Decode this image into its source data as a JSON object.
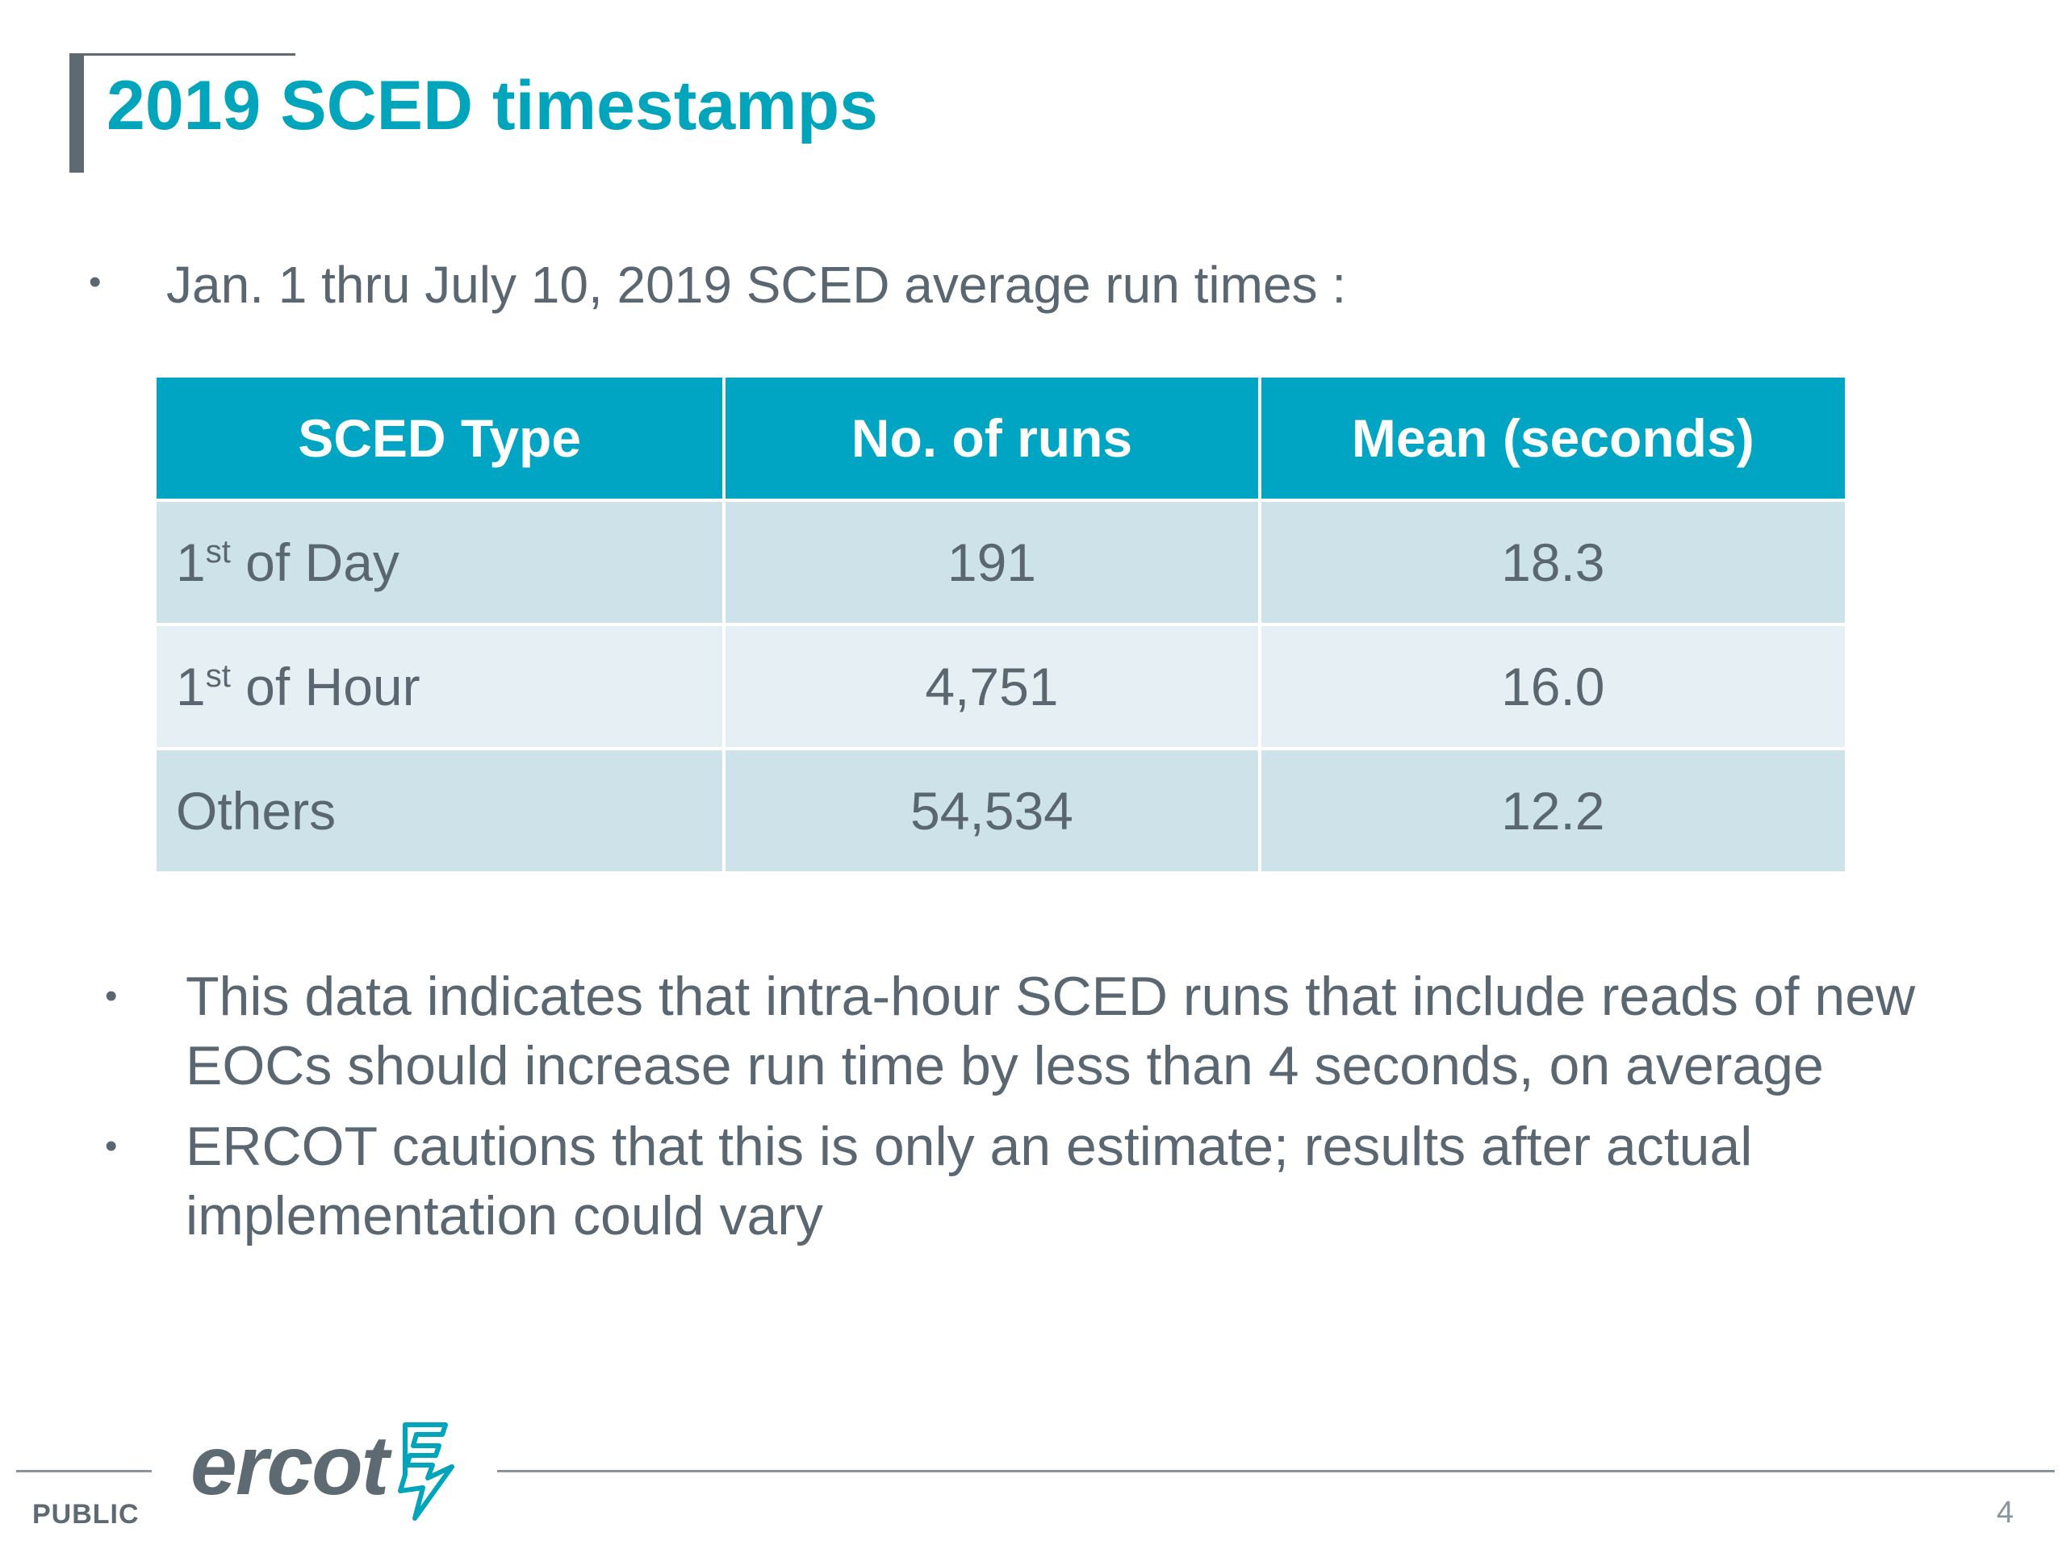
{
  "slide": {
    "title": "2019 SCED timestamps",
    "intro_bullet": "Jan. 1 thru July 10, 2019 SCED average run times :",
    "bullet_glyph": "•"
  },
  "table": {
    "headers": [
      "SCED Type",
      "No. of runs",
      "Mean (seconds)"
    ],
    "rows": [
      {
        "type_prefix": "1",
        "type_sup": "st",
        "type_suffix": " of Day",
        "runs": "191",
        "mean": "18.3"
      },
      {
        "type_prefix": "1",
        "type_sup": "st",
        "type_suffix": " of Hour",
        "runs": "4,751",
        "mean": "16.0"
      },
      {
        "type_prefix": "Others",
        "type_sup": "",
        "type_suffix": "",
        "runs": "54,534",
        "mean": "12.2"
      }
    ]
  },
  "notes": [
    "This data indicates that intra-hour SCED runs that include reads of new EOCs should increase run time by less than 4 seconds, on average",
    "ERCOT cautions that this is only an estimate; results after actual implementation could vary"
  ],
  "footer": {
    "logo_text": "ercot",
    "classification": "PUBLIC",
    "page_number": "4"
  },
  "colors": {
    "title": "#00a5bc",
    "header_fill": "#00a5c4",
    "row_dark": "#cde2e9",
    "row_light": "#e6f0f4",
    "text": "#5a6670",
    "accent_bar": "#5d6a72"
  }
}
